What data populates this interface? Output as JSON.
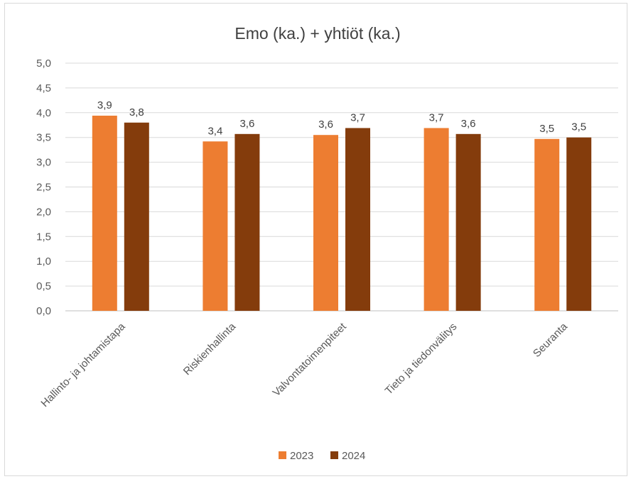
{
  "chart_data": {
    "type": "bar",
    "title": "Emo (ka.) + yhtiöt (ka.)",
    "categories": [
      "Hallinto- ja johtamistapa",
      "Riskienhallinta",
      "Valvontatoimenpiteet",
      "Tieto ja tiedonvälitys",
      "Seuranta"
    ],
    "series": [
      {
        "name": "2023",
        "color": "#ed7d31",
        "values": [
          3.94,
          3.42,
          3.55,
          3.69,
          3.47
        ],
        "labels": [
          "3,9",
          "3,4",
          "3,6",
          "3,7",
          "3,5"
        ]
      },
      {
        "name": "2024",
        "color": "#843c0c",
        "values": [
          3.8,
          3.57,
          3.69,
          3.57,
          3.5
        ],
        "labels": [
          "3,8",
          "3,6",
          "3,7",
          "3,6",
          "3,5"
        ]
      }
    ],
    "ylim": [
      0,
      5
    ],
    "yticks": [
      "0,0",
      "0,5",
      "1,0",
      "1,5",
      "2,0",
      "2,5",
      "3,0",
      "3,5",
      "4,0",
      "4,5",
      "5,0"
    ],
    "grid": true,
    "legend_position": "bottom",
    "xlabel": "",
    "ylabel": ""
  }
}
